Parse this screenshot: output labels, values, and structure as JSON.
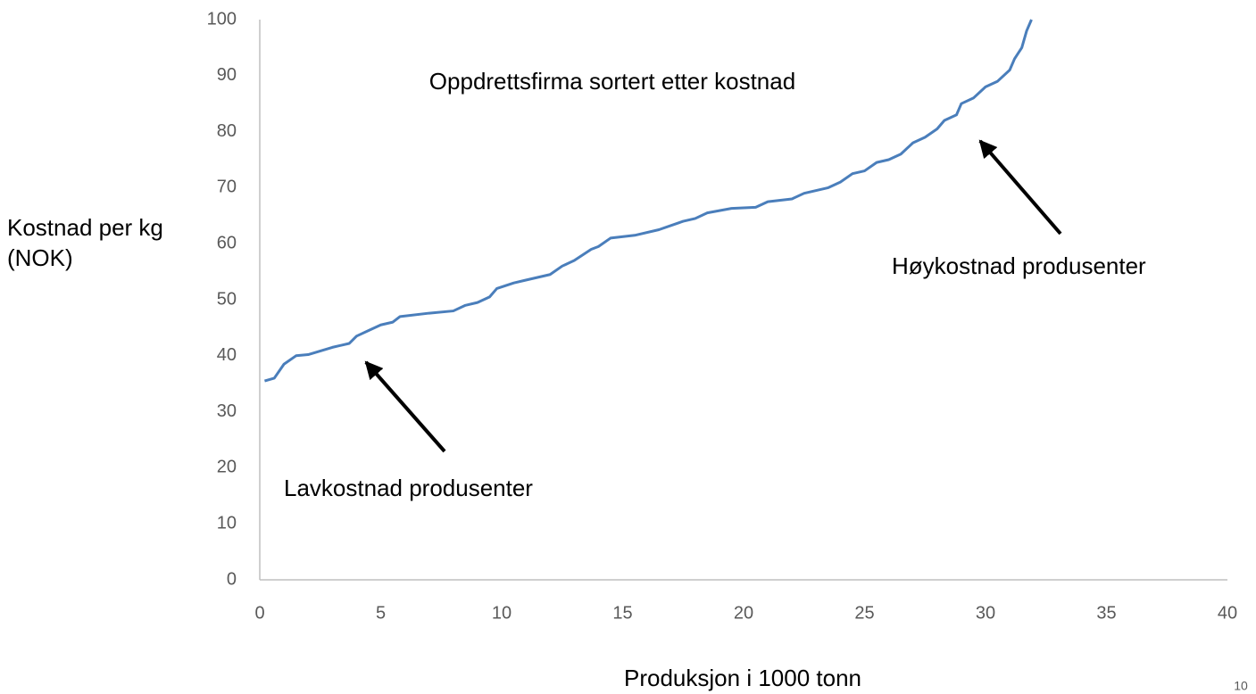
{
  "chart_data": {
    "type": "line",
    "title": "Oppdrettsfirma sortert etter kostnad",
    "xlabel": "Produksjon i 1000 tonn",
    "ylabel": "Kostnad per kg (NOK)",
    "annotations": [
      "Lavkostnad produsenter",
      "Høykostnad produsenter"
    ],
    "page_number": "10",
    "xlim": [
      0,
      40
    ],
    "xticks": [
      0,
      5,
      10,
      15,
      20,
      25,
      30,
      35,
      40
    ],
    "ylim": [
      0,
      100
    ],
    "yticks": [
      0,
      10,
      20,
      30,
      40,
      50,
      60,
      70,
      80,
      90,
      100
    ],
    "grid": false,
    "series": [
      {
        "color": "#4a7ebb",
        "x": [
          0.2,
          0.6,
          1,
          1.5,
          2,
          3,
          3.7,
          4,
          4.5,
          5,
          5.5,
          5.8,
          7,
          8,
          8.5,
          9,
          9.5,
          9.8,
          10.5,
          11,
          12,
          12.5,
          13,
          13.7,
          14,
          14.5,
          15.5,
          16.5,
          17.5,
          18,
          18.5,
          19.5,
          20.5,
          21,
          22,
          22.5,
          23.5,
          24,
          24.5,
          25,
          25.5,
          26,
          26.5,
          27,
          27.5,
          28,
          28.3,
          28.8,
          29,
          29.5,
          30,
          30.5,
          31,
          31.2,
          31.5,
          31.7,
          31.9
        ],
        "values": [
          35.5,
          36,
          38.5,
          40,
          40.2,
          41.5,
          42.2,
          43.5,
          44.5,
          45.5,
          46,
          47,
          47.6,
          48,
          49,
          49.5,
          50.5,
          52,
          53,
          53.5,
          54.5,
          56,
          57,
          59,
          59.5,
          61,
          61.5,
          62.5,
          64,
          64.5,
          65.5,
          66.3,
          66.5,
          67.5,
          68,
          69,
          70,
          71,
          72.5,
          73,
          74.5,
          75,
          76,
          78,
          79,
          80.5,
          82,
          83,
          85,
          86,
          88,
          89,
          91,
          93,
          95,
          98,
          100
        ]
      }
    ]
  }
}
